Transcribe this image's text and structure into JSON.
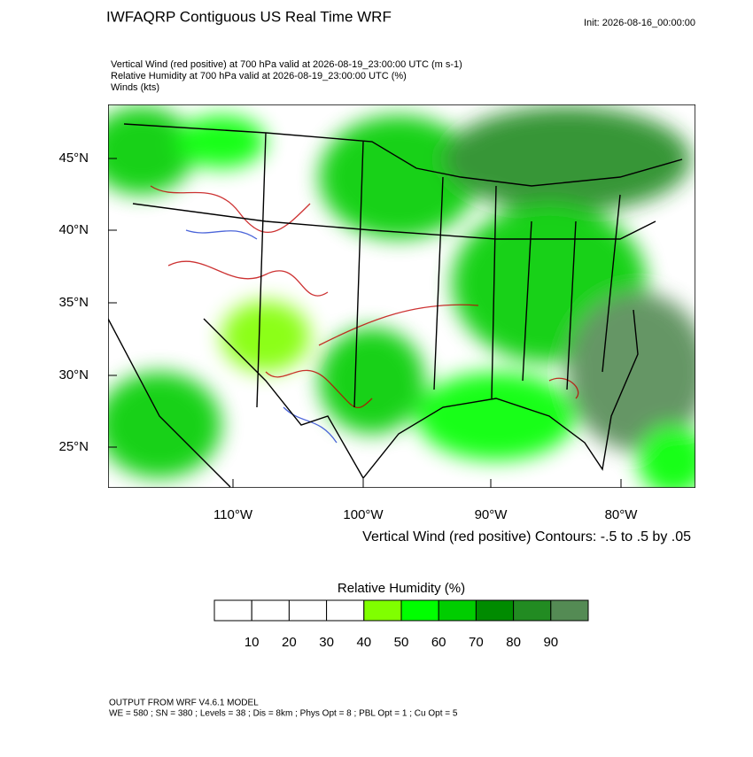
{
  "header": {
    "title": "IWFAQRP Contiguous US Real Time WRF",
    "init": "Init: 2026-08-16_00:00:00",
    "lines": [
      "Vertical Wind (red positive) at 700 hPa valid at 2026-08-19_23:00:00 UTC   (m s-1)",
      "Relative Humidity at 700 hPa valid at 2026-08-19_23:00:00 UTC   (%)",
      "Winds   (kts)"
    ]
  },
  "map": {
    "lat_labels": [
      "45°N",
      "40°N",
      "35°N",
      "30°N",
      "25°N"
    ],
    "lon_labels": [
      "110°W",
      "100°W",
      "90°W",
      "80°W"
    ],
    "contour_note": "Vertical Wind (red positive) Contours: -.5 to .5 by .05"
  },
  "colorbar": {
    "title": "Relative Humidity  (%)",
    "colors": [
      "#ffffff",
      "#ffffff",
      "#ffffff",
      "#ffffff",
      "#80ff00",
      "#00ff00",
      "#00cd00",
      "#008b00",
      "#228b22",
      "#548b54"
    ],
    "labels": [
      "10",
      "20",
      "30",
      "40",
      "50",
      "60",
      "70",
      "80",
      "90"
    ]
  },
  "footer": [
    "OUTPUT FROM WRF V4.6.1 MODEL",
    "WE = 580 ; SN = 380 ; Levels = 38 ; Dis = 8km ; Phys Opt = 8 ; PBL Opt = 1 ; Cu Opt = 5"
  ]
}
